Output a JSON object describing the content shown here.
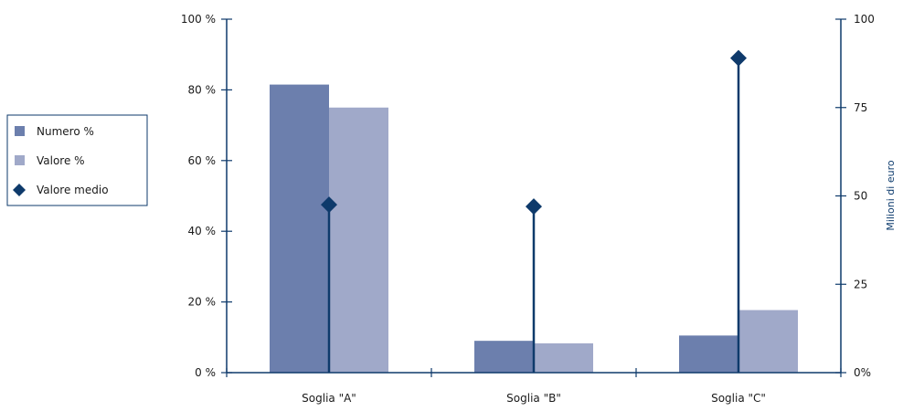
{
  "colors": {
    "numero": "#6c7fad",
    "valore": "#a0a9c9",
    "medio": "#0e3a6b",
    "axis": "#0e3a6b"
  },
  "chart_data": {
    "type": "bar",
    "categories": [
      "Soglia \"A\"",
      "Soglia \"B\"",
      "Soglia \"C\""
    ],
    "series": [
      {
        "name": "Numero %",
        "axis": "left",
        "values": [
          81.5,
          9,
          10.5
        ]
      },
      {
        "name": "Valore %",
        "axis": "left",
        "values": [
          75,
          8.3,
          17.7
        ]
      },
      {
        "name": "Valore medio",
        "axis": "right",
        "marker": "diamond-stem",
        "values": [
          47.5,
          47,
          89
        ]
      }
    ],
    "left_axis": {
      "ylim": [
        0,
        100
      ],
      "ticks": [
        "0 %",
        "20 %",
        "40 %",
        "60 %",
        "80 %",
        "100 %"
      ]
    },
    "right_axis": {
      "ylim": [
        0,
        100
      ],
      "label": "Milioni di euro",
      "ticks": [
        "0%",
        "25",
        "50",
        "75",
        "100"
      ]
    },
    "legend": {
      "placement": "left",
      "items": [
        "Numero %",
        "Valore %",
        "Valore medio"
      ]
    },
    "grid": false
  }
}
